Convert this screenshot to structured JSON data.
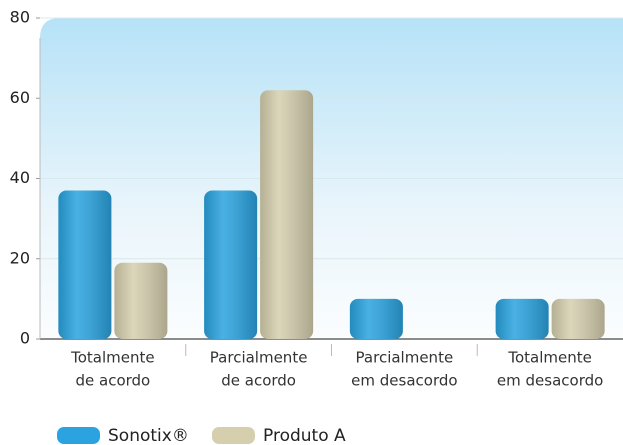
{
  "chart_data": {
    "type": "bar",
    "categories": [
      [
        "Totalmente",
        "de acordo"
      ],
      [
        "Parcialmente",
        "de acordo"
      ],
      [
        "Parcialmente",
        "em desacordo"
      ],
      [
        "Totalmente",
        "em desacordo"
      ]
    ],
    "series": [
      {
        "name": "Sonotix®",
        "color": "#2aa3e0",
        "values": [
          37,
          37,
          10,
          10
        ]
      },
      {
        "name": "Produto A",
        "color": "#d5cfae",
        "values": [
          19,
          62,
          null,
          10
        ]
      }
    ],
    "ylim": [
      0,
      80
    ],
    "yticks": [
      0,
      20,
      40,
      60,
      80
    ],
    "grid": true
  }
}
